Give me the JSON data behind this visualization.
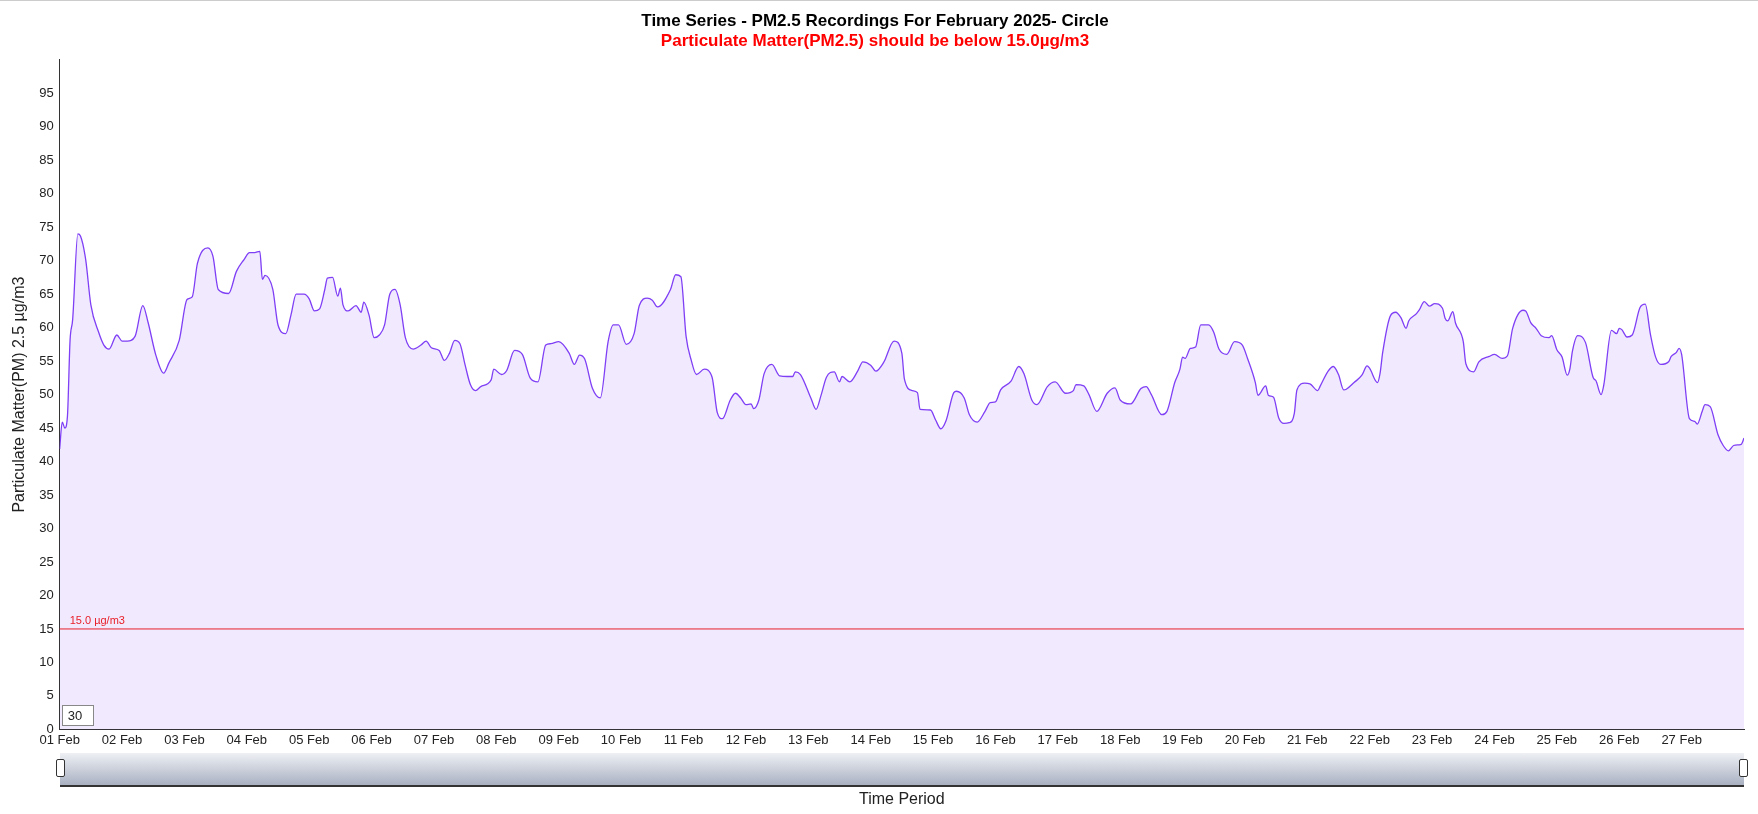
{
  "chart_data": {
    "type": "area",
    "title": "Time Series - PM2.5 Recordings For February 2025- Circle",
    "subtitle": "Particulate Matter(PM2.5) should be below 15.0µg/m3",
    "xlabel": "Time Period",
    "ylabel": "Particulate Matter(PM) 2.5 µg/m3",
    "annotations": [
      "30"
    ],
    "xlim": [
      "2025-02-01T00:00",
      "2025-02-28T00:00"
    ],
    "xticks": [
      {
        "value": "2025-02-01",
        "label": "01 Feb"
      },
      {
        "value": "2025-02-02",
        "label": "02 Feb"
      },
      {
        "value": "2025-02-03",
        "label": "03 Feb"
      },
      {
        "value": "2025-02-04",
        "label": "04 Feb"
      },
      {
        "value": "2025-02-05",
        "label": "05 Feb"
      },
      {
        "value": "2025-02-06",
        "label": "06 Feb"
      },
      {
        "value": "2025-02-07",
        "label": "07 Feb"
      },
      {
        "value": "2025-02-08",
        "label": "08 Feb"
      },
      {
        "value": "2025-02-09",
        "label": "09 Feb"
      },
      {
        "value": "2025-02-10",
        "label": "10 Feb"
      },
      {
        "value": "2025-02-11",
        "label": "11 Feb"
      },
      {
        "value": "2025-02-12",
        "label": "12 Feb"
      },
      {
        "value": "2025-02-13",
        "label": "13 Feb"
      },
      {
        "value": "2025-02-14",
        "label": "14 Feb"
      },
      {
        "value": "2025-02-15",
        "label": "15 Feb"
      },
      {
        "value": "2025-02-16",
        "label": "16 Feb"
      },
      {
        "value": "2025-02-17",
        "label": "17 Feb"
      },
      {
        "value": "2025-02-18",
        "label": "18 Feb"
      },
      {
        "value": "2025-02-19",
        "label": "19 Feb"
      },
      {
        "value": "2025-02-20",
        "label": "20 Feb"
      },
      {
        "value": "2025-02-21",
        "label": "21 Feb"
      },
      {
        "value": "2025-02-22",
        "label": "22 Feb"
      },
      {
        "value": "2025-02-23",
        "label": "23 Feb"
      },
      {
        "value": "2025-02-24",
        "label": "24 Feb"
      },
      {
        "value": "2025-02-25",
        "label": "25 Feb"
      },
      {
        "value": "2025-02-26",
        "label": "26 Feb"
      },
      {
        "value": "2025-02-27",
        "label": "27 Feb"
      }
    ],
    "ylim": [
      0,
      100
    ],
    "yticks": [
      0,
      5,
      10,
      15,
      20,
      25,
      30,
      35,
      40,
      45,
      50,
      55,
      60,
      65,
      70,
      75,
      80,
      85,
      90,
      95
    ],
    "grid": false,
    "legend": false,
    "marker": "none",
    "line_style": "solid",
    "ref_lines": [
      {
        "axis": "y",
        "value": 15,
        "label": "15.0 µg/m3",
        "color": "#e8202a"
      }
    ],
    "series": [
      {
        "color": "#7f3ff5",
        "x": [
          "2025-02-01T00:00",
          "2025-02-01T01:00",
          "2025-02-01T02:00",
          "2025-02-01T03:00",
          "2025-02-01T04:00",
          "2025-02-01T05:00",
          "2025-02-01T07:00",
          "2025-02-01T08:00",
          "2025-02-01T10:00",
          "2025-02-01T12:00",
          "2025-02-01T15:00",
          "2025-02-01T17:00",
          "2025-02-01T19:00",
          "2025-02-01T22:00",
          "2025-02-02T00:00",
          "2025-02-02T02:00",
          "2025-02-02T05:00",
          "2025-02-02T08:00",
          "2025-02-02T10:00",
          "2025-02-02T13:00",
          "2025-02-02T16:00",
          "2025-02-02T18:00",
          "2025-02-02T22:00",
          "2025-02-03T01:00",
          "2025-02-03T03:00",
          "2025-02-03T05:00",
          "2025-02-03T09:00",
          "2025-02-03T11:00",
          "2025-02-03T13:00",
          "2025-02-03T17:00",
          "2025-02-03T20:00",
          "2025-02-03T23:00",
          "2025-02-04T01:00",
          "2025-02-04T03:00",
          "2025-02-04T05:00",
          "2025-02-04T06:00",
          "2025-02-04T07:00",
          "2025-02-04T10:00",
          "2025-02-04T12:00",
          "2025-02-04T15:00",
          "2025-02-04T17:00",
          "2025-02-04T19:00",
          "2025-02-04T22:00",
          "2025-02-05T00:00",
          "2025-02-05T02:00",
          "2025-02-05T04:00",
          "2025-02-05T06:00",
          "2025-02-05T07:00",
          "2025-02-05T09:00",
          "2025-02-05T11:00",
          "2025-02-05T12:00",
          "2025-02-05T13:00",
          "2025-02-05T15:00",
          "2025-02-05T18:00",
          "2025-02-05T20:00",
          "2025-02-05T21:00",
          "2025-02-05T23:00",
          "2025-02-06T01:00",
          "2025-02-06T03:00",
          "2025-02-06T05:00",
          "2025-02-06T07:00",
          "2025-02-06T09:00",
          "2025-02-06T11:00",
          "2025-02-06T13:00",
          "2025-02-06T16:00",
          "2025-02-06T19:00",
          "2025-02-06T21:00",
          "2025-02-06T23:00",
          "2025-02-07T02:00",
          "2025-02-07T04:00",
          "2025-02-07T06:00",
          "2025-02-07T08:00",
          "2025-02-07T10:00",
          "2025-02-07T12:00",
          "2025-02-07T14:00",
          "2025-02-07T16:00",
          "2025-02-07T18:00",
          "2025-02-07T22:00",
          "2025-02-07T23:00",
          "2025-02-08T02:00",
          "2025-02-08T04:00",
          "2025-02-08T07:00",
          "2025-02-08T10:00",
          "2025-02-08T13:00",
          "2025-02-08T16:00",
          "2025-02-08T19:00",
          "2025-02-08T21:00",
          "2025-02-09T00:00",
          "2025-02-09T04:00",
          "2025-02-09T06:00",
          "2025-02-09T08:00",
          "2025-02-09T10:00",
          "2025-02-09T13:00",
          "2025-02-09T16:00",
          "2025-02-09T19:00",
          "2025-02-09T21:00",
          "2025-02-09T23:00",
          "2025-02-10T02:00",
          "2025-02-10T05:00",
          "2025-02-10T07:00",
          "2025-02-10T10:00",
          "2025-02-10T12:00",
          "2025-02-10T14:00",
          "2025-02-10T19:00",
          "2025-02-10T21:00",
          "2025-02-10T23:00",
          "2025-02-11T01:00",
          "2025-02-11T03:00",
          "2025-02-11T05:00",
          "2025-02-11T08:00",
          "2025-02-11T11:00",
          "2025-02-11T13:00",
          "2025-02-11T15:00",
          "2025-02-11T18:00",
          "2025-02-11T20:00",
          "2025-02-11T22:00",
          "2025-02-12T00:00",
          "2025-02-12T02:00",
          "2025-02-12T03:00",
          "2025-02-12T05:00",
          "2025-02-12T07:00",
          "2025-02-12T10:00",
          "2025-02-12T13:00",
          "2025-02-12T16:00",
          "2025-02-12T18:00",
          "2025-02-12T19:00",
          "2025-02-12T21:00",
          "2025-02-13T01:00",
          "2025-02-13T03:00",
          "2025-02-13T05:00",
          "2025-02-13T07:00",
          "2025-02-13T10:00",
          "2025-02-13T12:00",
          "2025-02-13T13:00",
          "2025-02-13T16:00",
          "2025-02-13T19:00",
          "2025-02-13T21:00",
          "2025-02-14T00:00",
          "2025-02-14T02:00",
          "2025-02-14T05:00",
          "2025-02-14T09:00",
          "2025-02-14T12:00",
          "2025-02-14T13:00",
          "2025-02-14T16:00",
          "2025-02-14T18:00",
          "2025-02-14T19:00",
          "2025-02-14T23:00",
          "2025-02-15T01:00",
          "2025-02-15T03:00",
          "2025-02-15T05:00",
          "2025-02-15T08:00",
          "2025-02-15T09:00",
          "2025-02-15T12:00",
          "2025-02-15T14:00",
          "2025-02-15T17:00",
          "2025-02-15T20:00",
          "2025-02-15T22:00",
          "2025-02-16T00:00",
          "2025-02-16T02:00",
          "2025-02-16T06:00",
          "2025-02-16T09:00",
          "2025-02-16T11:00",
          "2025-02-16T14:00",
          "2025-02-16T16:00",
          "2025-02-16T20:00",
          "2025-02-16T23:00",
          "2025-02-17T03:00",
          "2025-02-17T06:00",
          "2025-02-17T07:00",
          "2025-02-17T10:00",
          "2025-02-17T12:00",
          "2025-02-17T15:00",
          "2025-02-17T19:00",
          "2025-02-17T22:00",
          "2025-02-18T00:00",
          "2025-02-18T04:00",
          "2025-02-18T08:00",
          "2025-02-18T10:00",
          "2025-02-18T12:00",
          "2025-02-18T16:00",
          "2025-02-18T18:00",
          "2025-02-18T21:00",
          "2025-02-18T23:00",
          "2025-02-19T00:00",
          "2025-02-19T01:00",
          "2025-02-19T03:00",
          "2025-02-19T05:00",
          "2025-02-19T07:00",
          "2025-02-19T10:00",
          "2025-02-19T12:00",
          "2025-02-19T14:00",
          "2025-02-19T17:00",
          "2025-02-19T20:00",
          "2025-02-19T23:00",
          "2025-02-20T01:00",
          "2025-02-20T04:00",
          "2025-02-20T05:00",
          "2025-02-20T08:00",
          "2025-02-20T09:00",
          "2025-02-20T11:00",
          "2025-02-20T13:00",
          "2025-02-20T15:00",
          "2025-02-20T17:00",
          "2025-02-20T19:00",
          "2025-02-20T20:00",
          "2025-02-20T23:00",
          "2025-02-21T01:00",
          "2025-02-21T04:00",
          "2025-02-21T05:00",
          "2025-02-21T08:00",
          "2025-02-21T10:00",
          "2025-02-21T12:00",
          "2025-02-21T14:00",
          "2025-02-21T15:00",
          "2025-02-21T18:00",
          "2025-02-21T21:00",
          "2025-02-21T23:00",
          "2025-02-22T00:00",
          "2025-02-22T03:00",
          "2025-02-22T04:00",
          "2025-02-22T05:00",
          "2025-02-22T08:00",
          "2025-02-22T10:00",
          "2025-02-22T12:00",
          "2025-02-22T14:00",
          "2025-02-22T15:00",
          "2025-02-22T18:00",
          "2025-02-22T19:00",
          "2025-02-22T21:00",
          "2025-02-22T23:00",
          "2025-02-23T01:00",
          "2025-02-23T04:00",
          "2025-02-23T05:00",
          "2025-02-23T06:00",
          "2025-02-23T08:00",
          "2025-02-23T09:00",
          "2025-02-23T12:00",
          "2025-02-23T13:00",
          "2025-02-23T16:00",
          "2025-02-23T18:00",
          "2025-02-23T22:00",
          "2025-02-24T00:00",
          "2025-02-24T03:00",
          "2025-02-24T05:00",
          "2025-02-24T07:00",
          "2025-02-24T11:00",
          "2025-02-24T12:00",
          "2025-02-24T14:00",
          "2025-02-24T16:00",
          "2025-02-24T18:00",
          "2025-02-24T21:00",
          "2025-02-24T22:00",
          "2025-02-25T00:00",
          "2025-02-25T02:00",
          "2025-02-25T04:00",
          "2025-02-25T05:00",
          "2025-02-25T06:00",
          "2025-02-25T08:00",
          "2025-02-25T11:00",
          "2025-02-25T14:00",
          "2025-02-25T15:00",
          "2025-02-25T17:00",
          "2025-02-25T18:00",
          "2025-02-25T21:00",
          "2025-02-25T23:00",
          "2025-02-26T00:00",
          "2025-02-26T01:00",
          "2025-02-26T03:00",
          "2025-02-26T05:00",
          "2025-02-26T08:00",
          "2025-02-26T10:00",
          "2025-02-26T12:00",
          "2025-02-26T14:00",
          "2025-02-26T16:00",
          "2025-02-26T19:00",
          "2025-02-26T20:00",
          "2025-02-26T22:00",
          "2025-02-26T23:00",
          "2025-02-27T00:00",
          "2025-02-27T03:00",
          "2025-02-27T05:00",
          "2025-02-27T06:00",
          "2025-02-27T08:00",
          "2025-02-27T09:00",
          "2025-02-27T11:00",
          "2025-02-27T14:00",
          "2025-02-27T16:00",
          "2025-02-27T18:00",
          "2025-02-27T20:00",
          "2025-02-27T22:00",
          "2025-02-27T23:00",
          "2025-02-28T00:00"
        ],
        "values": [
          41.9,
          45.9,
          45.0,
          46.8,
          58.1,
          61.2,
          74.0,
          73.7,
          70.2,
          63.4,
          59.3,
          57.4,
          56.8,
          58.9,
          58.0,
          58.0,
          58.7,
          63.3,
          60.8,
          55.9,
          53.2,
          54.7,
          58.1,
          64.2,
          64.6,
          69.6,
          71.9,
          70.6,
          65.7,
          65.1,
          68.4,
          70.2,
          71.2,
          71.2,
          71.4,
          67.2,
          67.8,
          65.7,
          60.4,
          59.1,
          61.9,
          65.0,
          65.0,
          64.3,
          62.5,
          62.8,
          65.7,
          67.4,
          67.5,
          64.7,
          65.9,
          63.4,
          62.5,
          63.3,
          62.3,
          63.8,
          61.9,
          58.5,
          58.9,
          60.4,
          65.0,
          65.7,
          63.4,
          58.5,
          56.8,
          57.4,
          58.0,
          57.0,
          56.6,
          55.1,
          56.2,
          58.1,
          57.6,
          54.4,
          51.5,
          50.6,
          51.2,
          52.2,
          53.8,
          53.0,
          53.6,
          56.6,
          56.0,
          52.5,
          51.9,
          57.4,
          57.6,
          57.9,
          56.2,
          54.5,
          55.9,
          55.3,
          50.9,
          49.5,
          57.9,
          60.4,
          60.4,
          57.5,
          59.1,
          63.3,
          64.4,
          64.1,
          63.1,
          65.7,
          67.9,
          67.6,
          58.7,
          55.1,
          53.0,
          53.8,
          52.6,
          47.3,
          46.4,
          49.2,
          50.2,
          49.5,
          48.5,
          48.6,
          47.9,
          49.2,
          53.1,
          54.5,
          52.8,
          52.7,
          52.7,
          53.4,
          53.0,
          49.5,
          47.8,
          50.0,
          52.6,
          53.4,
          51.9,
          52.7,
          51.9,
          53.5,
          54.9,
          54.4,
          53.5,
          54.8,
          58.0,
          56.2,
          52.3,
          50.6,
          50.3,
          47.8,
          47.7,
          46.2,
          44.9,
          46.1,
          50.3,
          50.5,
          49.5,
          47.0,
          45.9,
          47.5,
          48.8,
          48.9,
          50.7,
          52.0,
          54.2,
          53.1,
          49.2,
          48.5,
          51.2,
          51.9,
          50.2,
          50.6,
          51.5,
          51.3,
          50.0,
          47.5,
          50.2,
          51.0,
          49.2,
          48.6,
          50.9,
          51.2,
          50.0,
          47.0,
          47.5,
          51.8,
          53.8,
          55.6,
          55.4,
          56.9,
          57.1,
          60.4,
          60.4,
          59.3,
          56.8,
          56.0,
          57.9,
          57.4,
          55.4,
          51.8,
          49.9,
          51.3,
          49.9,
          49.6,
          46.5,
          45.7,
          45.8,
          47.2,
          50.7,
          51.7,
          51.6,
          50.6,
          51.3,
          53.5,
          54.2,
          53.0,
          50.7,
          50.8,
          51.8,
          52.9,
          54.3,
          53.9,
          51.8,
          53.2,
          56.3,
          61.8,
          62.3,
          61.5,
          59.9,
          61.0,
          62.1,
          62.6,
          63.9,
          63.2,
          63.6,
          62.9,
          61.4,
          61.0,
          62.4,
          60.7,
          57.9,
          54.6,
          53.4,
          54.9,
          55.7,
          56.0,
          55.4,
          55.8,
          59.9,
          62.6,
          62.5,
          60.7,
          59.9,
          58.8,
          58.5,
          58.8,
          56.7,
          55.6,
          52.9,
          53.8,
          56.5,
          58.8,
          57.8,
          52.5,
          52.1,
          50.0,
          51.3,
          59.6,
          59.1,
          59.9,
          59.7,
          58.6,
          58.9,
          63.0,
          63.5,
          59.0,
          55.6,
          54.5,
          54.9,
          55.7,
          56.3,
          56.9,
          56.0,
          46.4,
          46.0,
          45.6,
          47.6,
          48.5,
          48.2,
          44.0,
          42.4,
          41.6,
          42.4,
          42.5,
          42.6,
          43.5
        ]
      }
    ]
  }
}
